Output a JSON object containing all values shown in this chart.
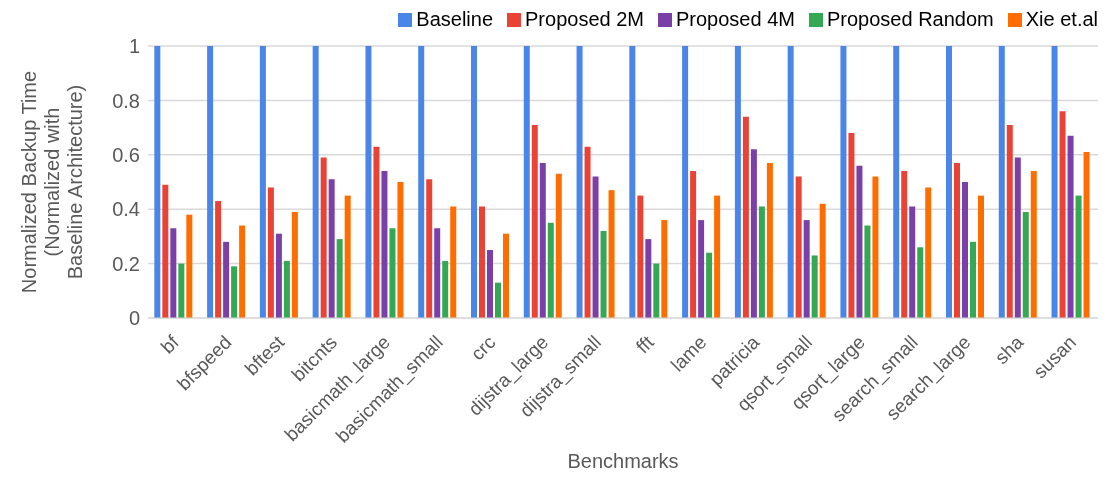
{
  "chart_data": {
    "type": "bar",
    "xlabel": "Benchmarks",
    "ylabel": "Normalized Backup Time (Normalized with Baseline Architecture)",
    "categories": [
      "bf",
      "bfspeed",
      "bftest",
      "bitcnts",
      "basicmath_large",
      "basicmath_small",
      "crc",
      "dijstra_large",
      "dijstra_small",
      "fft",
      "lame",
      "patricia",
      "qsort_small",
      "qsort_large",
      "search_small",
      "search_large",
      "sha",
      "susan"
    ],
    "series": [
      {
        "name": "Baseline",
        "color": "#4a86e8",
        "values": [
          1,
          1,
          1,
          1,
          1,
          1,
          1,
          1,
          1,
          1,
          1,
          1,
          1,
          1,
          1,
          1,
          1,
          1
        ]
      },
      {
        "name": "Proposed 2M",
        "color": "#ea4335",
        "values": [
          0.49,
          0.43,
          0.48,
          0.59,
          0.63,
          0.51,
          0.41,
          0.71,
          0.63,
          0.45,
          0.54,
          0.74,
          0.52,
          0.68,
          0.54,
          0.57,
          0.71,
          0.76
        ]
      },
      {
        "name": "Proposed 4M",
        "color": "#7b3fa8",
        "values": [
          0.33,
          0.28,
          0.31,
          0.51,
          0.54,
          0.33,
          0.25,
          0.57,
          0.52,
          0.29,
          0.36,
          0.62,
          0.36,
          0.56,
          0.41,
          0.5,
          0.59,
          0.67
        ]
      },
      {
        "name": "Proposed Random",
        "color": "#34a853",
        "values": [
          0.2,
          0.19,
          0.21,
          0.29,
          0.33,
          0.21,
          0.13,
          0.35,
          0.32,
          0.2,
          0.24,
          0.41,
          0.23,
          0.34,
          0.26,
          0.28,
          0.39,
          0.45
        ]
      },
      {
        "name": "Xie et.al",
        "color": "#ff6d01",
        "values": [
          0.38,
          0.34,
          0.39,
          0.45,
          0.5,
          0.41,
          0.31,
          0.53,
          0.47,
          0.36,
          0.45,
          0.57,
          0.42,
          0.52,
          0.48,
          0.45,
          0.54,
          0.61
        ]
      }
    ],
    "ylim": [
      0,
      1
    ],
    "yticks": [
      0,
      0.2,
      0.4,
      0.6,
      0.8,
      1
    ],
    "grid": "y",
    "legend": "top"
  }
}
